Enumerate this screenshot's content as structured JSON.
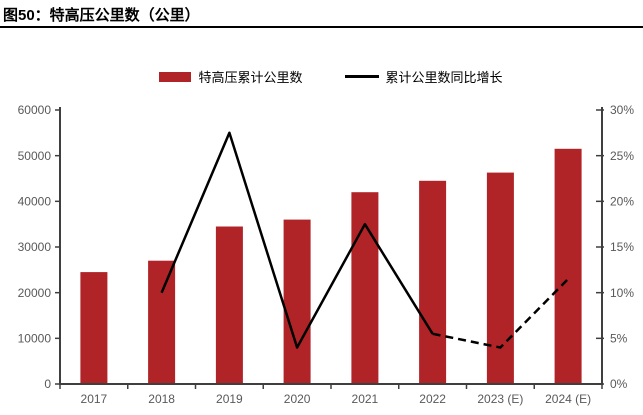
{
  "page": {
    "title": "图50：特高压公里数（公里）"
  },
  "legend": [
    {
      "label": "特高压累计公里数",
      "type": "bar",
      "color": "#B02428"
    },
    {
      "label": "累计公里数同比增长",
      "type": "line",
      "color": "#000000"
    }
  ],
  "colors": {
    "bar": "#B02428",
    "line": "#000000",
    "axis": "#3f3f3f",
    "tick_label": "#595959",
    "title_rule": "#000000"
  },
  "chart_data": {
    "type": "combo",
    "categories": [
      "2017",
      "2018",
      "2019",
      "2020",
      "2021",
      "2022",
      "2023 (E)",
      "2024 (E)"
    ],
    "series": [
      {
        "name": "特高压累计公里数",
        "type": "bar",
        "axis": "left",
        "color": "#B02428",
        "values": [
          24500,
          27000,
          34500,
          36000,
          42000,
          44500,
          46300,
          51500
        ]
      },
      {
        "name": "累计公里数同比增长",
        "type": "line",
        "axis": "right",
        "color": "#000000",
        "unit": "%",
        "values": [
          null,
          10,
          27.5,
          4,
          17.5,
          5.5,
          4,
          11.5
        ],
        "dashed_from_category": "2022"
      }
    ],
    "left_axis": {
      "min": 0,
      "max": 60000,
      "step": 10000,
      "tick_labels": [
        "0",
        "10000",
        "20000",
        "30000",
        "40000",
        "50000",
        "60000"
      ]
    },
    "right_axis": {
      "min": 0,
      "max": 30,
      "step": 5,
      "tick_labels": [
        "0%",
        "5%",
        "10%",
        "15%",
        "20%",
        "25%",
        "30%"
      ]
    },
    "grid": false,
    "legend_position": "top-center",
    "title": "图50：特高压公里数（公里）"
  }
}
